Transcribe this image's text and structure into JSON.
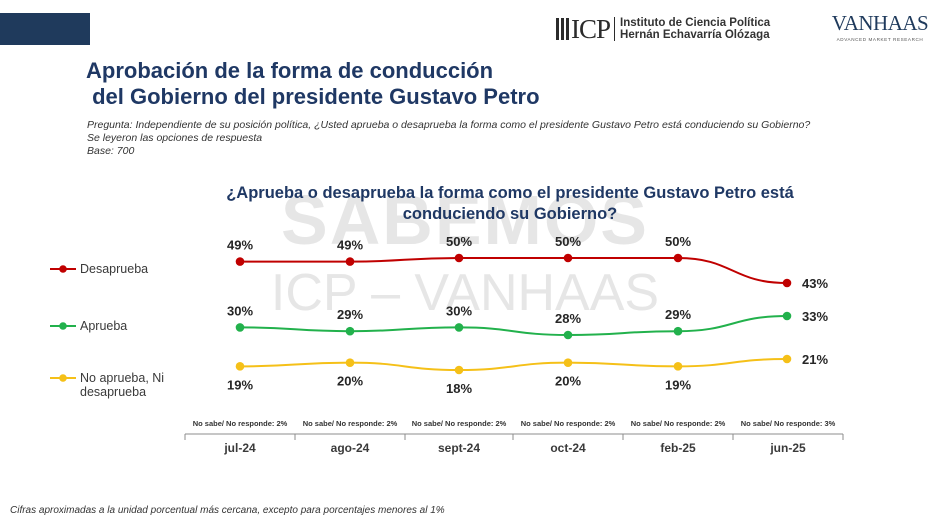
{
  "header": {
    "logo_icp_text": "ICP",
    "logo_icp_line1": "Instituto de Ciencia Política",
    "logo_icp_line2": "Hernán Echavarría Olózaga",
    "logo_vanhaas_text": "VANHAAS",
    "logo_vanhaas_tagline": "ADVANCED MARKET RESEARCH"
  },
  "title": {
    "line1": "Aprobación de la forma de conducción",
    "line2": " del Gobierno del presidente Gustavo Petro"
  },
  "subtitle": {
    "question": "Pregunta: Independiente de su posición política, ¿Usted aprueba o desaprueba la forma como el presidente Gustavo Petro está conduciendo su Gobierno?",
    "note": "Se leyeron las opciones de respuesta",
    "base": "Base: 700"
  },
  "watermark": {
    "top": "SABEMOS",
    "bottom": "ICP – VANHAAS"
  },
  "footnote": "Cifras aproximadas a la unidad porcentual más cercana, excepto para porcentajes menores al 1%",
  "colors": {
    "desaprueba": "#c00000",
    "aprueba": "#22b14c",
    "neutral": "#f5c018",
    "title": "#1f3864"
  },
  "chart_data": {
    "type": "line",
    "title": "¿Aprueba o desaprueba la forma como el presidente Gustavo Petro está conduciendo su Gobierno?",
    "title_lines": [
      "¿Aprueba o desaprueba la forma como el presidente Gustavo Petro está",
      "conduciendo su Gobierno?"
    ],
    "categories": [
      "jul-24",
      "ago-24",
      "sept-24",
      "oct-24",
      "feb-25",
      "jun-25"
    ],
    "series": [
      {
        "name": "Desaprueba",
        "legend_lines": [
          "Desaprueba"
        ],
        "color": "#c00000",
        "values": [
          49,
          49,
          50,
          50,
          50,
          43
        ],
        "labels": [
          "49%",
          "49%",
          "50%",
          "50%",
          "50%",
          "43%"
        ]
      },
      {
        "name": "Aprueba",
        "legend_lines": [
          "Aprueba"
        ],
        "color": "#22b14c",
        "values": [
          30,
          29,
          30,
          28,
          29,
          33
        ],
        "labels": [
          "30%",
          "29%",
          "30%",
          "28%",
          "29%",
          "33%"
        ]
      },
      {
        "name": "No aprueba, Ni desaprueba",
        "legend_lines": [
          "No aprueba, Ni",
          "desaprueba"
        ],
        "color": "#f5c018",
        "values": [
          19,
          20,
          18,
          20,
          19,
          21
        ],
        "labels": [
          "19%",
          "20%",
          "18%",
          "20%",
          "19%",
          "21%"
        ]
      }
    ],
    "no_sabe": [
      "No sabe/ No responde: 2%",
      "No sabe/ No responde: 2%",
      "No sabe/ No responde: 2%",
      "No sabe/ No responde: 2%",
      "No sabe/ No responde: 2%",
      "No sabe/ No responde: 3%"
    ]
  }
}
